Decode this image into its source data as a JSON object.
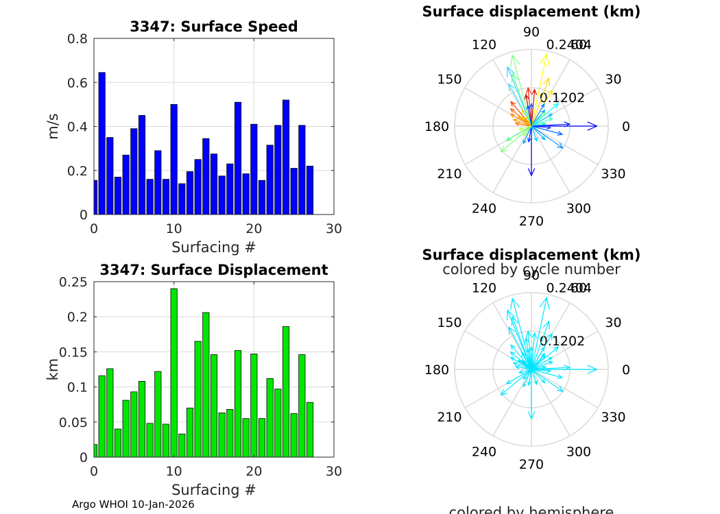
{
  "footer": "Argo WHOI 10-Jan-2026",
  "colors": {
    "speed_bar": "#0000ff",
    "displacement_bar": "#00e600",
    "hemisphere_arrow": "#00e5ff",
    "grid": "#d9d9d9"
  },
  "chart_data": [
    {
      "id": "speed",
      "type": "bar",
      "title": "3347: Surface Speed",
      "xlabel": "Surfacing #",
      "ylabel": "m/s",
      "xlim": [
        0,
        30
      ],
      "ylim": [
        0,
        0.8
      ],
      "xticks": [
        0,
        10,
        20,
        30
      ],
      "yticks": [
        0,
        0.2,
        0.4,
        0.6,
        0.8
      ],
      "ytick_labels": [
        "0",
        "0.2",
        "0.4",
        "0.6",
        "0.8"
      ],
      "grid": true,
      "x": [
        0,
        1,
        2,
        3,
        4,
        5,
        6,
        7,
        8,
        9,
        10,
        11,
        12,
        13,
        14,
        15,
        16,
        17,
        18,
        19,
        20,
        21,
        22,
        23,
        24,
        25,
        26,
        27
      ],
      "values": [
        0.155,
        0.645,
        0.35,
        0.17,
        0.27,
        0.39,
        0.45,
        0.16,
        0.29,
        0.16,
        0.5,
        0.14,
        0.195,
        0.25,
        0.345,
        0.275,
        0.175,
        0.23,
        0.51,
        0.185,
        0.41,
        0.155,
        0.315,
        0.405,
        0.52,
        0.21,
        0.405,
        0.22
      ]
    },
    {
      "id": "displacement",
      "type": "bar",
      "title": "3347: Surface Displacement",
      "xlabel": "Surfacing #",
      "ylabel": "km",
      "xlim": [
        0,
        30
      ],
      "ylim": [
        0,
        0.25
      ],
      "xticks": [
        0,
        10,
        20,
        30
      ],
      "yticks": [
        0,
        0.05,
        0.1,
        0.15,
        0.2,
        0.25
      ],
      "ytick_labels": [
        "0",
        "0.05",
        "0.1",
        "0.15",
        "0.2",
        "0.25"
      ],
      "grid": true,
      "x": [
        0,
        1,
        2,
        3,
        4,
        5,
        6,
        7,
        8,
        9,
        10,
        11,
        12,
        13,
        14,
        15,
        16,
        17,
        18,
        19,
        20,
        21,
        22,
        23,
        24,
        25,
        26,
        27
      ],
      "values": [
        0.018,
        0.116,
        0.126,
        0.04,
        0.081,
        0.093,
        0.108,
        0.048,
        0.122,
        0.047,
        0.24,
        0.033,
        0.07,
        0.165,
        0.206,
        0.146,
        0.063,
        0.068,
        0.152,
        0.055,
        0.147,
        0.055,
        0.112,
        0.097,
        0.186,
        0.062,
        0.146,
        0.078
      ]
    },
    {
      "id": "polar_cycle",
      "type": "polar-arrows",
      "title": "Surface displacement (km)",
      "caption": "colored by cycle number",
      "rmax": 0.2404,
      "rtick_labels": [
        "0.1202",
        "0.2404"
      ],
      "angle_labels": [
        "0",
        "30",
        "60",
        "90",
        "120",
        "150",
        "180",
        "210",
        "240",
        "270",
        "300",
        "330"
      ],
      "arrows": [
        {
          "angle": 78,
          "r": 0.23,
          "color": "#ffff00"
        },
        {
          "angle": 70,
          "r": 0.16,
          "color": "#ffd700"
        },
        {
          "angle": 60,
          "r": 0.13,
          "color": "#ffee00"
        },
        {
          "angle": 85,
          "r": 0.115,
          "color": "#e00000"
        },
        {
          "angle": 95,
          "r": 0.12,
          "color": "#ff2000"
        },
        {
          "angle": 100,
          "r": 0.1,
          "color": "#c00000"
        },
        {
          "angle": 105,
          "r": 0.23,
          "color": "#80ff80"
        },
        {
          "angle": 112,
          "r": 0.2,
          "color": "#30d0ff"
        },
        {
          "angle": 110,
          "r": 0.175,
          "color": "#60ff90"
        },
        {
          "angle": 118,
          "r": 0.15,
          "color": "#40e0ff"
        },
        {
          "angle": 130,
          "r": 0.1,
          "color": "#ff4000"
        },
        {
          "angle": 140,
          "r": 0.085,
          "color": "#ff6000"
        },
        {
          "angle": 150,
          "r": 0.075,
          "color": "#ff8000"
        },
        {
          "angle": 160,
          "r": 0.06,
          "color": "#ffa000"
        },
        {
          "angle": 170,
          "r": 0.05,
          "color": "#ff7000"
        },
        {
          "angle": 145,
          "r": 0.05,
          "color": "#ffb000"
        },
        {
          "angle": 135,
          "r": 0.04,
          "color": "#ffcc00"
        },
        {
          "angle": 120,
          "r": 0.06,
          "color": "#ffe000"
        },
        {
          "angle": 100,
          "r": 0.065,
          "color": "#0040ff"
        },
        {
          "angle": 90,
          "r": 0.07,
          "color": "#0060ff"
        },
        {
          "angle": 60,
          "r": 0.08,
          "color": "#0080ff"
        },
        {
          "angle": 50,
          "r": 0.065,
          "color": "#00a0ff"
        },
        {
          "angle": 30,
          "r": 0.075,
          "color": "#00c0ff"
        },
        {
          "angle": 20,
          "r": 0.07,
          "color": "#40ffc0"
        },
        {
          "angle": 40,
          "r": 0.11,
          "color": "#00ffff"
        },
        {
          "angle": 45,
          "r": 0.06,
          "color": "#80ff80"
        },
        {
          "angle": 10,
          "r": 0.045,
          "color": "#00ffb0"
        },
        {
          "angle": 0,
          "r": 0.205,
          "color": "#0000ff"
        },
        {
          "angle": 3,
          "r": 0.12,
          "color": "#0020ff"
        },
        {
          "angle": -5,
          "r": 0.06,
          "color": "#2040ff"
        },
        {
          "angle": -15,
          "r": 0.1,
          "color": "#0060ff"
        },
        {
          "angle": -35,
          "r": 0.12,
          "color": "#0090ff"
        },
        {
          "angle": -45,
          "r": 0.06,
          "color": "#00b0ff"
        },
        {
          "angle": -90,
          "r": 0.155,
          "color": "#0000ff"
        },
        {
          "angle": -100,
          "r": 0.05,
          "color": "#0030ff"
        },
        {
          "angle": -115,
          "r": 0.06,
          "color": "#00a0ff"
        },
        {
          "angle": -140,
          "r": 0.125,
          "color": "#80ff80"
        },
        {
          "angle": -150,
          "r": 0.09,
          "color": "#40ff80"
        },
        {
          "angle": -165,
          "r": 0.04,
          "color": "#c0ff40"
        },
        {
          "angle": -130,
          "r": 0.04,
          "color": "#a0ff60"
        },
        {
          "angle": -70,
          "r": 0.05,
          "color": "#00d0ff"
        }
      ]
    },
    {
      "id": "polar_hemisphere",
      "type": "polar-arrows",
      "title": "Surface displacement (km)",
      "caption": "colored by hemisphere",
      "rmax": 0.2404,
      "rtick_labels": [
        "0.1202",
        "0.2404"
      ],
      "angle_labels": [
        "0",
        "30",
        "60",
        "90",
        "120",
        "150",
        "180",
        "210",
        "240",
        "270",
        "300",
        "330"
      ],
      "arrows": [
        {
          "angle": 78,
          "r": 0.23,
          "color": "#00e5ff"
        },
        {
          "angle": 70,
          "r": 0.16,
          "color": "#00e5ff"
        },
        {
          "angle": 60,
          "r": 0.13,
          "color": "#00e5ff"
        },
        {
          "angle": 85,
          "r": 0.115,
          "color": "#00e5ff"
        },
        {
          "angle": 95,
          "r": 0.12,
          "color": "#00e5ff"
        },
        {
          "angle": 100,
          "r": 0.1,
          "color": "#00e5ff"
        },
        {
          "angle": 105,
          "r": 0.23,
          "color": "#00e5ff"
        },
        {
          "angle": 112,
          "r": 0.2,
          "color": "#00e5ff"
        },
        {
          "angle": 110,
          "r": 0.175,
          "color": "#00e5ff"
        },
        {
          "angle": 118,
          "r": 0.15,
          "color": "#00e5ff"
        },
        {
          "angle": 130,
          "r": 0.1,
          "color": "#00e5ff"
        },
        {
          "angle": 140,
          "r": 0.085,
          "color": "#00e5ff"
        },
        {
          "angle": 150,
          "r": 0.075,
          "color": "#00e5ff"
        },
        {
          "angle": 160,
          "r": 0.06,
          "color": "#00e5ff"
        },
        {
          "angle": 170,
          "r": 0.05,
          "color": "#00e5ff"
        },
        {
          "angle": 145,
          "r": 0.05,
          "color": "#00e5ff"
        },
        {
          "angle": 135,
          "r": 0.04,
          "color": "#00e5ff"
        },
        {
          "angle": 120,
          "r": 0.06,
          "color": "#00e5ff"
        },
        {
          "angle": 100,
          "r": 0.065,
          "color": "#00e5ff"
        },
        {
          "angle": 90,
          "r": 0.07,
          "color": "#00e5ff"
        },
        {
          "angle": 60,
          "r": 0.08,
          "color": "#00e5ff"
        },
        {
          "angle": 50,
          "r": 0.065,
          "color": "#00e5ff"
        },
        {
          "angle": 30,
          "r": 0.075,
          "color": "#00e5ff"
        },
        {
          "angle": 20,
          "r": 0.07,
          "color": "#00e5ff"
        },
        {
          "angle": 40,
          "r": 0.11,
          "color": "#00e5ff"
        },
        {
          "angle": 45,
          "r": 0.06,
          "color": "#00e5ff"
        },
        {
          "angle": 10,
          "r": 0.045,
          "color": "#00e5ff"
        },
        {
          "angle": 0,
          "r": 0.205,
          "color": "#00e5ff"
        },
        {
          "angle": 3,
          "r": 0.12,
          "color": "#00e5ff"
        },
        {
          "angle": -5,
          "r": 0.06,
          "color": "#00e5ff"
        },
        {
          "angle": -15,
          "r": 0.1,
          "color": "#00e5ff"
        },
        {
          "angle": -35,
          "r": 0.12,
          "color": "#00e5ff"
        },
        {
          "angle": -45,
          "r": 0.06,
          "color": "#00e5ff"
        },
        {
          "angle": -90,
          "r": 0.155,
          "color": "#00e5ff"
        },
        {
          "angle": -100,
          "r": 0.05,
          "color": "#00e5ff"
        },
        {
          "angle": -115,
          "r": 0.06,
          "color": "#00e5ff"
        },
        {
          "angle": -140,
          "r": 0.125,
          "color": "#00e5ff"
        },
        {
          "angle": -150,
          "r": 0.09,
          "color": "#00e5ff"
        },
        {
          "angle": -165,
          "r": 0.04,
          "color": "#00e5ff"
        },
        {
          "angle": -130,
          "r": 0.04,
          "color": "#00e5ff"
        },
        {
          "angle": -70,
          "r": 0.05,
          "color": "#00e5ff"
        }
      ]
    }
  ]
}
